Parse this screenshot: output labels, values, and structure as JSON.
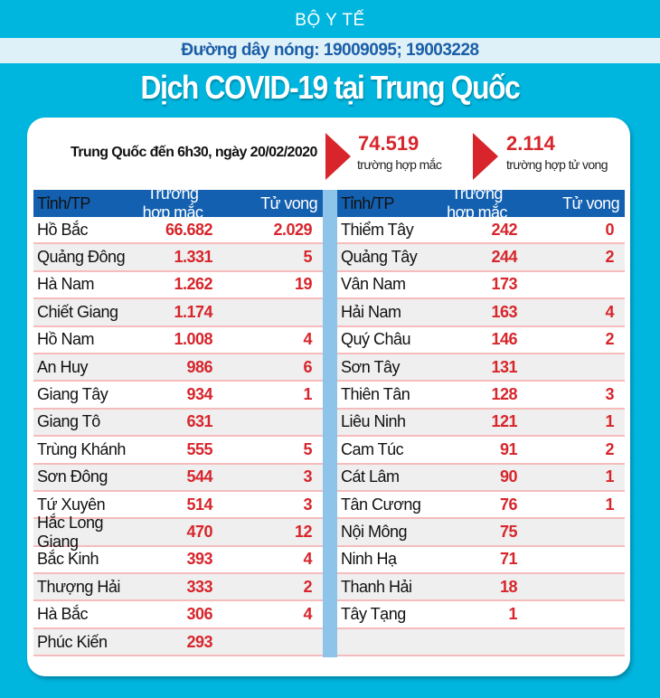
{
  "header": {
    "org": "BỘ Y TẾ",
    "hotline": "Đường dây nóng: 19009095; 19003228",
    "title": "Dịch COVID-19 tại Trung Quốc"
  },
  "summary": {
    "as_of": "Trung Quốc  đến 6h30, ngày 20/02/2020",
    "cases": "74.519",
    "cases_label": "trường hợp  mắc",
    "deaths": "2.114",
    "deaths_label": "trường hợp  tử vong"
  },
  "columns": [
    "Tỉnh/TP",
    "Trường hợp mắc",
    "Tử vong"
  ],
  "left_rows": [
    [
      "Hồ Bắc",
      "66.682",
      "2.029"
    ],
    [
      "Quảng Đông",
      "1.331",
      "5"
    ],
    [
      "Hà Nam",
      "1.262",
      "19"
    ],
    [
      "Chiết Giang",
      "1.174",
      ""
    ],
    [
      "Hồ Nam",
      "1.008",
      "4"
    ],
    [
      "An Huy",
      "986",
      "6"
    ],
    [
      "Giang Tây",
      "934",
      "1"
    ],
    [
      "Giang Tô",
      "631",
      ""
    ],
    [
      "Trùng Khánh",
      "555",
      "5"
    ],
    [
      "Sơn Đông",
      "544",
      "3"
    ],
    [
      "Tứ Xuyên",
      "514",
      "3"
    ],
    [
      "Hắc Long Giang",
      "470",
      "12"
    ],
    [
      "Bắc Kinh",
      "393",
      "4"
    ],
    [
      "Thượng Hải",
      "333",
      "2"
    ],
    [
      "Hà Bắc",
      "306",
      "4"
    ],
    [
      "Phúc Kiến",
      "293",
      ""
    ]
  ],
  "right_rows": [
    [
      "Thiểm Tây",
      "242",
      "0"
    ],
    [
      "Quảng Tây",
      "244",
      "2"
    ],
    [
      "Vân Nam",
      "173",
      ""
    ],
    [
      "Hải Nam",
      "163",
      "4"
    ],
    [
      "Quý Châu",
      "146",
      "2"
    ],
    [
      "Sơn Tây",
      "131",
      ""
    ],
    [
      "Thiên Tân",
      "128",
      "3"
    ],
    [
      "Liêu Ninh",
      "121",
      "1"
    ],
    [
      "Cam Túc",
      "91",
      "2"
    ],
    [
      "Cát Lâm",
      "90",
      "1"
    ],
    [
      "Tân Cương",
      "76",
      "1"
    ],
    [
      "Nội Mông",
      "75",
      ""
    ],
    [
      "Ninh Hạ",
      "71",
      ""
    ],
    [
      "Thanh Hải",
      "18",
      ""
    ],
    [
      "Tây Tạng",
      "1",
      ""
    ],
    [
      "",
      "",
      ""
    ]
  ],
  "colors": {
    "background": "#00b5de",
    "header": "#1460b0",
    "accent": "#d7252b"
  }
}
